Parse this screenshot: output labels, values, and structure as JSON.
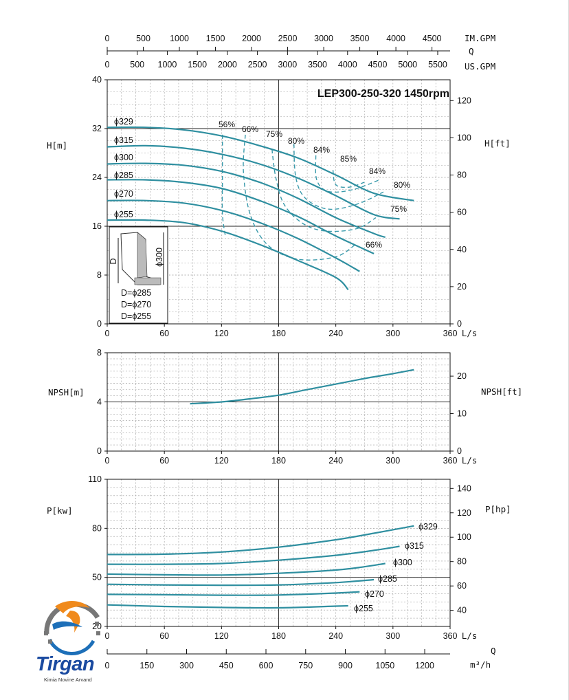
{
  "chart_data": [
    {
      "type": "line",
      "panel": "head",
      "title": "LEP300-250-320 1450rpm",
      "xlabel": "L/s",
      "ylabel": "H[m]",
      "ylabel_right": "H[ft]",
      "xlim": [
        0,
        360
      ],
      "ylim": [
        0,
        40
      ],
      "ylim_right": [
        0,
        131.2
      ],
      "x_ticks": [
        0,
        60,
        120,
        180,
        240,
        300,
        360
      ],
      "y_ticks": [
        0,
        8,
        16,
        24,
        32,
        40
      ],
      "y_ticks_right": [
        0,
        20,
        40,
        60,
        80,
        100,
        120
      ],
      "grid": true,
      "top_axes": [
        {
          "label": "IM.GPM",
          "ticks": [
            0,
            500,
            1000,
            1500,
            2000,
            2500,
            3000,
            3500,
            4000,
            4500
          ],
          "lps_per_unit": 0.07577
        },
        {
          "label": "Q",
          "ticks": []
        },
        {
          "label": "US.GPM",
          "ticks": [
            0,
            500,
            1000,
            1500,
            2000,
            2500,
            3000,
            3500,
            4000,
            4500,
            5000,
            5500
          ],
          "lps_per_unit": 0.06309
        }
      ],
      "series": [
        {
          "name": "ϕ329",
          "x": [
            0,
            40,
            80,
            120,
            160,
            200,
            240,
            280,
            322
          ],
          "y": [
            32.2,
            32.2,
            31.8,
            30.8,
            29.2,
            27.2,
            24.4,
            21.4,
            20.2
          ]
        },
        {
          "name": "ϕ315",
          "x": [
            0,
            40,
            80,
            120,
            160,
            200,
            240,
            280,
            307
          ],
          "y": [
            29.0,
            29.2,
            28.8,
            27.8,
            26.2,
            23.9,
            21.0,
            17.9,
            17.2
          ]
        },
        {
          "name": "ϕ300",
          "x": [
            0,
            40,
            80,
            120,
            160,
            200,
            240,
            280,
            292
          ],
          "y": [
            26.2,
            26.3,
            26.0,
            25.0,
            23.2,
            20.6,
            17.4,
            14.8,
            14.2
          ]
        },
        {
          "name": "ϕ285",
          "x": [
            0,
            40,
            80,
            120,
            160,
            200,
            240,
            280
          ],
          "y": [
            23.6,
            23.6,
            23.2,
            22.2,
            20.2,
            17.6,
            14.4,
            11.5
          ]
        },
        {
          "name": "ϕ270",
          "x": [
            0,
            40,
            80,
            120,
            160,
            200,
            240,
            265
          ],
          "y": [
            20.2,
            20.2,
            19.8,
            18.6,
            16.6,
            14.0,
            10.8,
            8.6
          ]
        },
        {
          "name": "ϕ255",
          "x": [
            0,
            40,
            80,
            120,
            160,
            200,
            240,
            253
          ],
          "y": [
            17.0,
            17.0,
            16.6,
            15.2,
            13.0,
            10.4,
            7.6,
            5.6
          ]
        }
      ],
      "efficiency_labels": [
        "56%",
        "66%",
        "75%",
        "80%",
        "84%",
        "85%",
        "84%",
        "80%",
        "75%",
        "66%"
      ],
      "inset": {
        "dimension_label": "ϕ300",
        "dim_letter": "D",
        "lines": [
          "D=ϕ285",
          "D=ϕ270",
          "D=ϕ255"
        ]
      }
    },
    {
      "type": "line",
      "panel": "npsh",
      "xlabel": "L/s",
      "ylabel": "NPSH[m]",
      "ylabel_right": "NPSH[ft]",
      "xlim": [
        0,
        360
      ],
      "ylim": [
        0,
        8
      ],
      "ylim_right": [
        0,
        26.25
      ],
      "x_ticks": [
        0,
        60,
        120,
        180,
        240,
        300,
        360
      ],
      "y_ticks": [
        0,
        4,
        8
      ],
      "y_ticks_right": [
        0,
        10,
        20
      ],
      "series": [
        {
          "x": [
            87,
            120,
            150,
            180,
            210,
            240,
            270,
            300,
            322
          ],
          "y": [
            3.85,
            4.0,
            4.25,
            4.55,
            5.0,
            5.45,
            5.9,
            6.3,
            6.62
          ]
        }
      ]
    },
    {
      "type": "line",
      "panel": "power",
      "xlabel": "L/s",
      "ylabel": "P[kw]",
      "ylabel_right": "P[hp]",
      "xlim": [
        0,
        360
      ],
      "ylim": [
        20,
        110
      ],
      "ylim_right": [
        26.82,
        147.5
      ],
      "x_ticks": [
        0,
        60,
        120,
        180,
        240,
        300,
        360
      ],
      "y_ticks": [
        20,
        50,
        80,
        110
      ],
      "y_ticks_right": [
        40,
        60,
        80,
        100,
        120,
        140
      ],
      "bottom_axis": {
        "label": "Q",
        "unit": "m³/h",
        "ticks": [
          0,
          150,
          300,
          450,
          600,
          750,
          900,
          1050,
          1200
        ]
      },
      "series": [
        {
          "name": "ϕ329",
          "x": [
            0,
            60,
            120,
            180,
            240,
            280,
            322
          ],
          "y": [
            64.0,
            64.2,
            65.5,
            68.5,
            73.0,
            77.0,
            81.5
          ]
        },
        {
          "name": "ϕ315",
          "x": [
            0,
            60,
            120,
            180,
            240,
            280,
            307
          ],
          "y": [
            58.0,
            58.0,
            58.5,
            60.5,
            63.5,
            66.5,
            69.0
          ]
        },
        {
          "name": "ϕ300",
          "x": [
            0,
            60,
            120,
            180,
            240,
            270,
            292
          ],
          "y": [
            52.0,
            51.6,
            51.4,
            52.5,
            54.5,
            56.5,
            58.5
          ]
        },
        {
          "name": "ϕ285",
          "x": [
            0,
            60,
            120,
            180,
            240,
            280
          ],
          "y": [
            45.8,
            45.4,
            45.2,
            45.4,
            46.8,
            48.6
          ]
        },
        {
          "name": "ϕ270",
          "x": [
            0,
            60,
            120,
            180,
            240,
            265
          ],
          "y": [
            39.6,
            39.4,
            39.1,
            39.2,
            40.4,
            41.2
          ]
        },
        {
          "name": "ϕ255",
          "x": [
            0,
            60,
            120,
            180,
            240,
            253
          ],
          "y": [
            33.2,
            32.2,
            31.6,
            31.4,
            32.4,
            32.6
          ]
        }
      ]
    }
  ],
  "logo": {
    "name": "Tirgan",
    "subtitle": "Kimia Novine Arvand",
    "icon": "gear-swoosh-logo-icon"
  },
  "colors": {
    "curve": "#2f8fa0",
    "grid": "#9a9a9a",
    "frame": "#111111"
  }
}
